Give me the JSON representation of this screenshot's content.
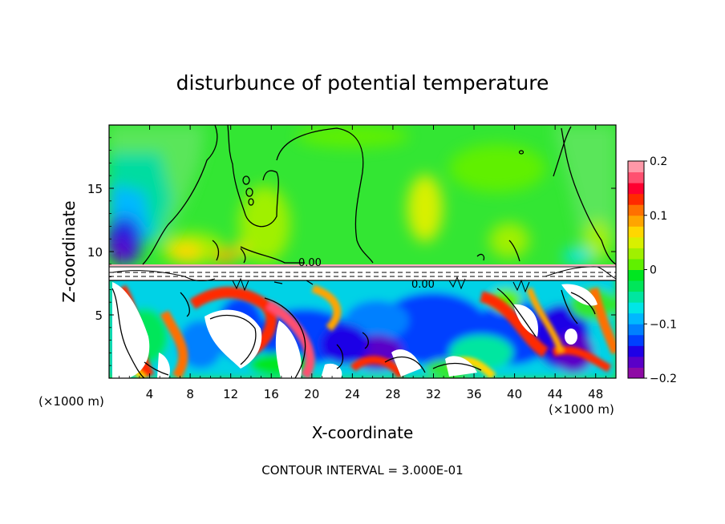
{
  "chart_data": {
    "type": "heatmap",
    "title": "disturbunce of potential temperature",
    "xlabel": "X-coordinate",
    "ylabel": "Z-coordinate",
    "x_unit_left": "(×1000 m)",
    "x_unit_right": "(×1000 m)",
    "xlim": [
      0,
      50
    ],
    "ylim": [
      0,
      20
    ],
    "x_ticks": [
      4,
      8,
      12,
      16,
      20,
      24,
      28,
      32,
      36,
      40,
      44,
      48
    ],
    "x_tick_labels": [
      "4",
      "8",
      "12",
      "16",
      "20",
      "24",
      "28",
      "32",
      "36",
      "40",
      "44",
      "48"
    ],
    "y_ticks": [
      5,
      10,
      15
    ],
    "y_tick_labels": [
      "5",
      "10",
      "15"
    ],
    "colorbar": {
      "min": -0.2,
      "max": 0.2,
      "ticks": [
        0.2,
        0.1,
        0,
        -0.1,
        -0.2
      ],
      "tick_labels": [
        "0.2",
        "0.1",
        "0",
        "−0.1",
        "−0.2"
      ],
      "colors": [
        "#8e0aa5",
        "#5a00c8",
        "#1f00e6",
        "#0040ff",
        "#0080ff",
        "#00b8ff",
        "#00e6e6",
        "#00e6a0",
        "#00e65a",
        "#00e620",
        "#60f000",
        "#a0f000",
        "#d8f000",
        "#ffd700",
        "#ffa500",
        "#ff7000",
        "#ff2a00",
        "#ff0030",
        "#ff5070",
        "#ff98a8"
      ]
    },
    "contour_labels": [
      "0.00",
      "0.00"
    ],
    "footer": "CONTOUR INTERVAL = 3.000E-01"
  }
}
